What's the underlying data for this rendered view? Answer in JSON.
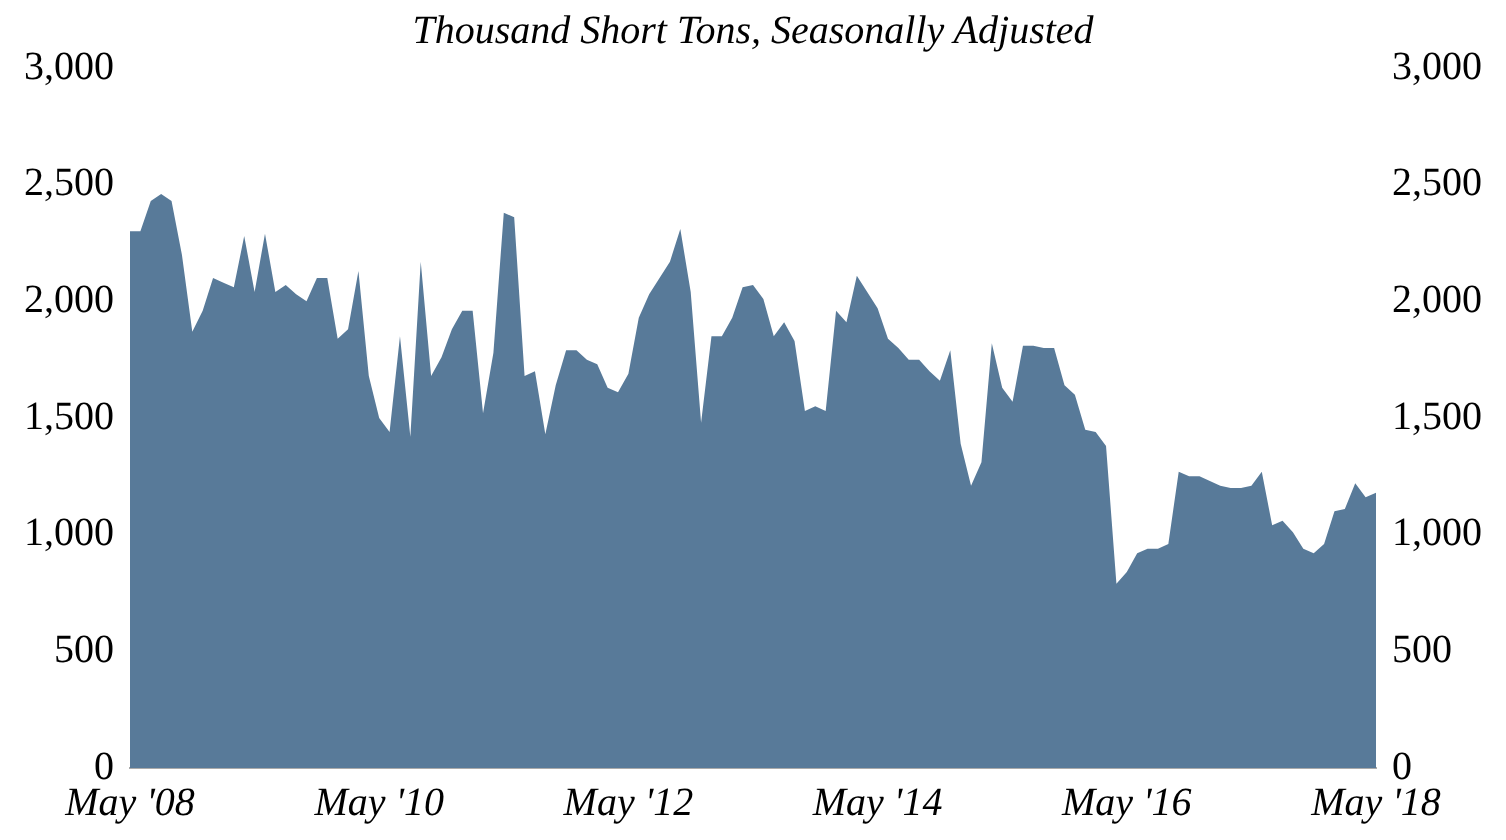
{
  "chart_data": {
    "type": "area",
    "subtitle": "Thousand Short Tons, Seasonally Adjusted",
    "categories": [
      "May '08",
      null,
      null,
      null,
      null,
      null,
      null,
      null,
      null,
      null,
      null,
      null,
      null,
      null,
      null,
      null,
      null,
      null,
      null,
      null,
      null,
      null,
      null,
      null,
      "May '10",
      null,
      null,
      null,
      null,
      null,
      null,
      null,
      null,
      null,
      null,
      null,
      null,
      null,
      null,
      null,
      null,
      null,
      null,
      null,
      null,
      null,
      null,
      null,
      "May '12",
      null,
      null,
      null,
      null,
      null,
      null,
      null,
      null,
      null,
      null,
      null,
      null,
      null,
      null,
      null,
      null,
      null,
      null,
      null,
      null,
      null,
      null,
      null,
      "May '14",
      null,
      null,
      null,
      null,
      null,
      null,
      null,
      null,
      null,
      null,
      null,
      null,
      null,
      null,
      null,
      null,
      null,
      null,
      null,
      null,
      null,
      null,
      null,
      "May '16",
      null,
      null,
      null,
      null,
      null,
      null,
      null,
      null,
      null,
      null,
      null,
      null,
      null,
      null,
      null,
      null,
      null,
      null,
      null,
      null,
      null,
      null,
      null,
      "May '18"
    ],
    "series": [
      {
        "color": "#587a99",
        "values": [
          2300,
          2300,
          2430,
          2460,
          2430,
          2200,
          1870,
          1960,
          2100,
          2080,
          2060,
          2280,
          2040,
          2290,
          2040,
          2070,
          2030,
          2000,
          2100,
          2100,
          1840,
          1880,
          2130,
          1680,
          1500,
          1440,
          1850,
          1420,
          2170,
          1680,
          1760,
          1880,
          1960,
          1960,
          1520,
          1780,
          2380,
          2360,
          1680,
          1700,
          1430,
          1640,
          1790,
          1790,
          1750,
          1730,
          1630,
          1610,
          1690,
          1930,
          2030,
          2100,
          2170,
          2310,
          2040,
          1480,
          1850,
          1850,
          1930,
          2060,
          2070,
          2010,
          1850,
          1910,
          1830,
          1530,
          1550,
          1530,
          1960,
          1910,
          2110,
          2040,
          1970,
          1840,
          1800,
          1750,
          1750,
          1700,
          1660,
          1790,
          1390,
          1210,
          1310,
          1820,
          1630,
          1570,
          1810,
          1810,
          1800,
          1800,
          1640,
          1600,
          1450,
          1440,
          1380,
          790,
          840,
          920,
          940,
          940,
          960,
          1270,
          1250,
          1250,
          1230,
          1210,
          1200,
          1200,
          1210,
          1270,
          1040,
          1060,
          1010,
          940,
          920,
          960,
          1100,
          1110,
          1220,
          1160,
          1180
        ]
      }
    ],
    "ylim": [
      0,
      3000
    ],
    "yticks": [
      0,
      500,
      {
        "value": 1000,
        "label": "1,000"
      },
      {
        "value": 1500,
        "label": "1,500"
      },
      {
        "value": 2000,
        "label": "2,000"
      },
      {
        "value": 2500,
        "label": "2,500"
      },
      {
        "value": 3000,
        "label": "3,000"
      }
    ],
    "y2lim": [
      0,
      3000
    ],
    "y2ticks": [
      0,
      500,
      {
        "value": 1000,
        "label": "1,000"
      },
      {
        "value": 1500,
        "label": "1,500"
      },
      {
        "value": 2000,
        "label": "2,000"
      },
      {
        "value": 2500,
        "label": "2,500"
      },
      {
        "value": 3000,
        "label": "3,000"
      }
    ],
    "grid": false,
    "legend": false
  }
}
